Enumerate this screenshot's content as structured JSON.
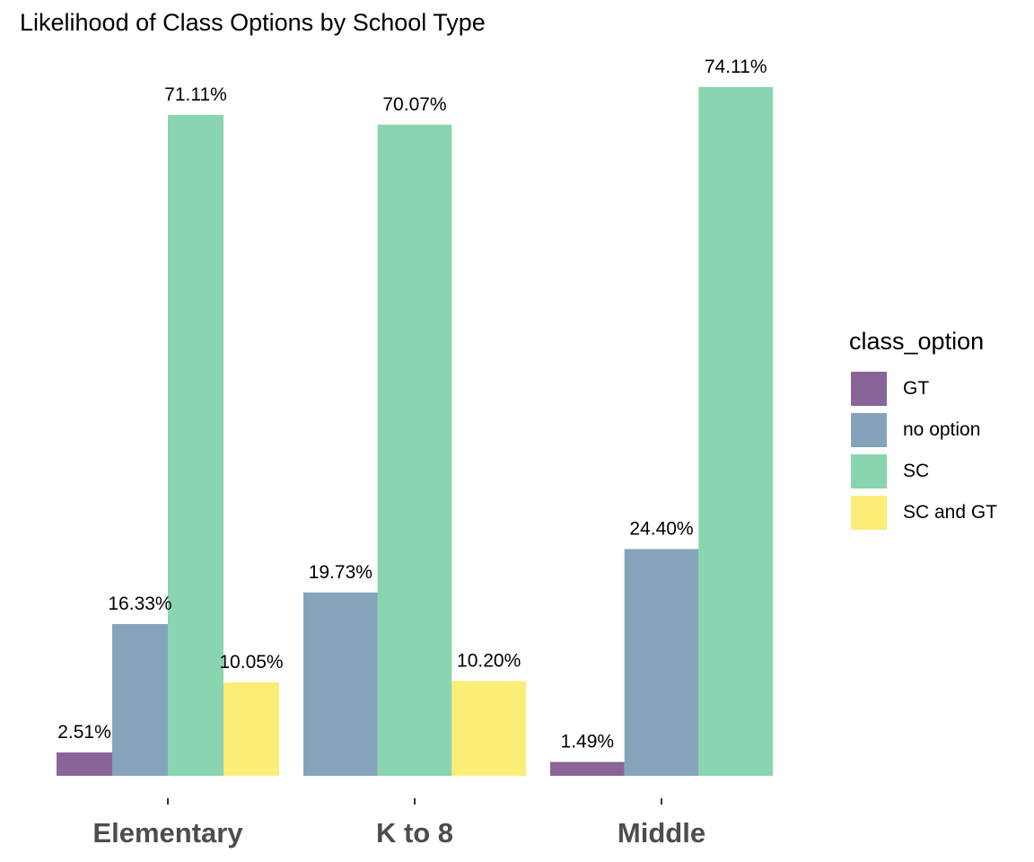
{
  "title": "Likelihood of Class Options by School Type",
  "legend": {
    "title": "class_option",
    "items": [
      {
        "label": "GT",
        "color": "#6B3E80"
      },
      {
        "label": "no option",
        "color": "#668DAA"
      },
      {
        "label": "SC",
        "color": "#6BCB9B"
      },
      {
        "label": "SC and GT",
        "color": "#FBE955"
      }
    ]
  },
  "chart_data": {
    "type": "bar",
    "title": "Likelihood of Class Options by School Type",
    "xlabel": "",
    "ylabel": "",
    "categories": [
      "Elementary",
      "K to 8",
      "Middle"
    ],
    "series": [
      {
        "name": "GT",
        "color": "#6B3E80",
        "values": [
          2.51,
          null,
          1.49
        ],
        "labels": [
          "2.51%",
          null,
          "1.49%"
        ]
      },
      {
        "name": "no option",
        "color": "#668DAA",
        "values": [
          16.33,
          19.73,
          24.4
        ],
        "labels": [
          "16.33%",
          "19.73%",
          "24.40%"
        ]
      },
      {
        "name": "SC",
        "color": "#6BCB9B",
        "values": [
          71.11,
          70.07,
          74.11
        ],
        "labels": [
          "71.11%",
          "70.07%",
          "74.11%"
        ]
      },
      {
        "name": "SC and GT",
        "color": "#FBE955",
        "values": [
          10.05,
          10.2,
          null
        ],
        "labels": [
          "10.05%",
          "10.20%",
          null
        ]
      }
    ],
    "ylim": [
      0,
      74.11
    ],
    "grid": false,
    "legend_position": "right"
  }
}
